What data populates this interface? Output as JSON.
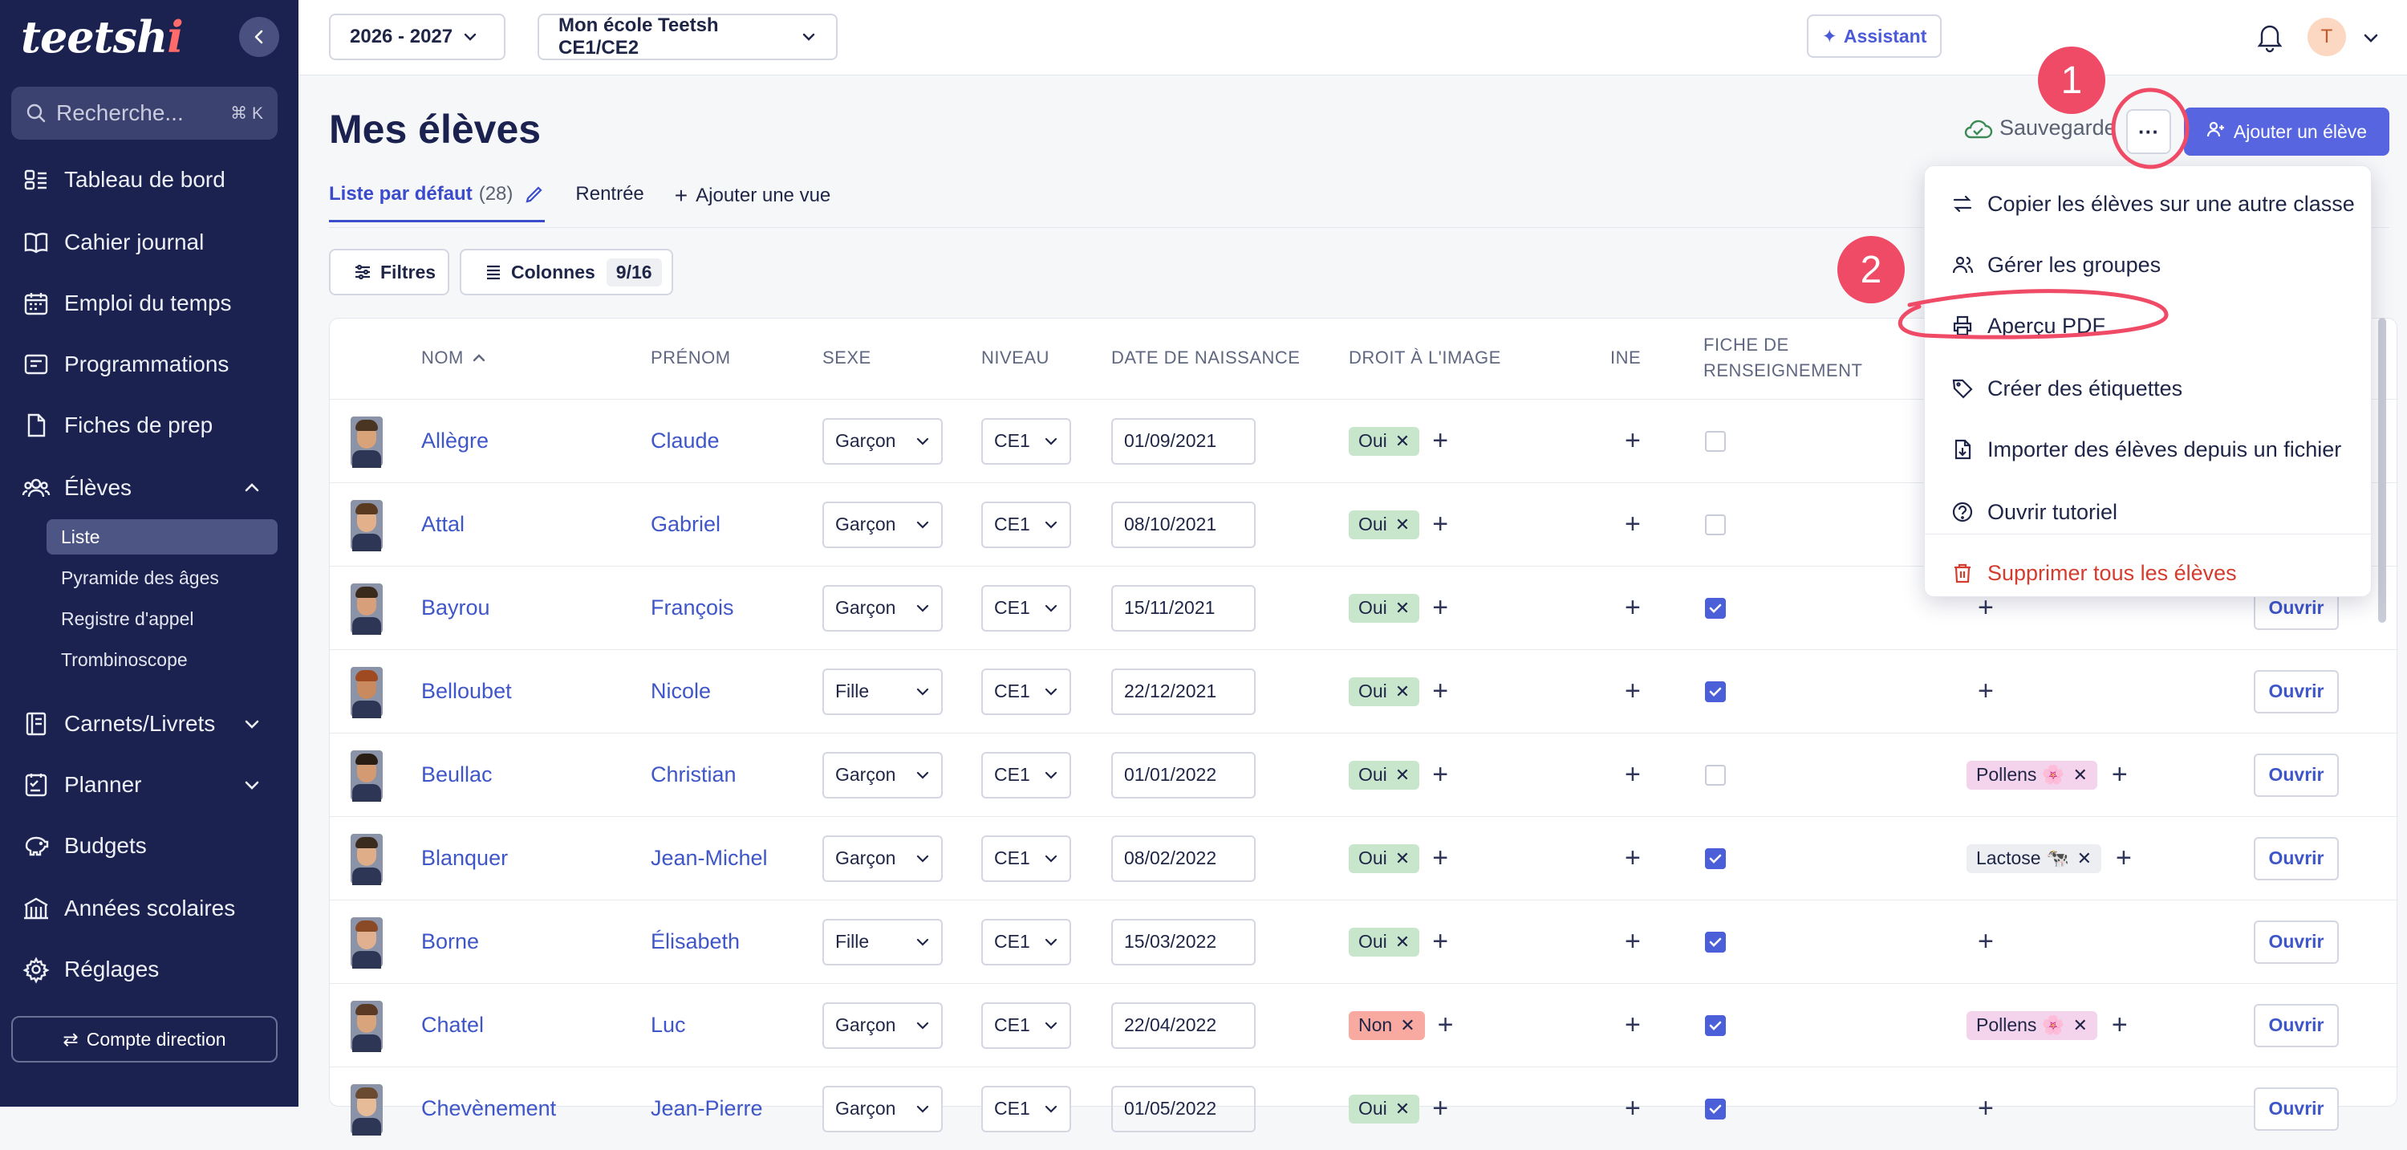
{
  "app": {
    "logo_main": "teetsh",
    "logo_accent": "i",
    "search_placeholder": "Recherche...",
    "search_shortcut": "⌘ K"
  },
  "sidebar": {
    "items": [
      {
        "label": "Tableau de bord",
        "icon": "dashboard-icon"
      },
      {
        "label": "Cahier journal",
        "icon": "book-icon"
      },
      {
        "label": "Emploi du temps",
        "icon": "calendar-icon"
      },
      {
        "label": "Programmations",
        "icon": "programmation-icon"
      },
      {
        "label": "Fiches de prep",
        "icon": "document-icon"
      },
      {
        "label": "Élèves",
        "icon": "users-icon"
      }
    ],
    "sub_items": [
      "Liste",
      "Pyramide des âges",
      "Registre d'appel",
      "Trombinoscope"
    ],
    "items_bottom": [
      {
        "label": "Carnets/Livrets",
        "icon": "notebook-icon"
      },
      {
        "label": "Planner",
        "icon": "planner-icon"
      },
      {
        "label": "Budgets",
        "icon": "piggy-bank-icon"
      },
      {
        "label": "Années scolaires",
        "icon": "school-icon"
      },
      {
        "label": "Réglages",
        "icon": "gear-icon"
      }
    ],
    "compte_label": "Compte direction"
  },
  "topbar": {
    "year": "2026 - 2027",
    "school": "Mon école Teetsh CE1/CE2",
    "assistant": "Assistant",
    "avatar_letter": "T"
  },
  "page": {
    "title": "Mes élèves",
    "save_status": "Sauvegarde",
    "dots": "···",
    "add_button": "Ajouter un élève",
    "tabs": [
      {
        "label": "Liste par défaut",
        "count": "(28)"
      },
      {
        "label": "Rentrée"
      },
      {
        "label": "Ajouter une vue"
      }
    ],
    "filters": "Filtres",
    "columns": "Colonnes",
    "columns_count": "9/16"
  },
  "table": {
    "headers": [
      "Nom",
      "Prénom",
      "Sexe",
      "Niveau",
      "Date de naissance",
      "Droit à l'image",
      "INE",
      "Fiche de",
      "renseignement"
    ],
    "rows": [
      {
        "nom": "Allègre",
        "prenom": "Claude",
        "sexe": "Garçon",
        "niveau": "CE1",
        "date": "01/09/2021",
        "droit": "Oui",
        "fiche": false,
        "allergy": "",
        "open": ""
      },
      {
        "nom": "Attal",
        "prenom": "Gabriel",
        "sexe": "Garçon",
        "niveau": "CE1",
        "date": "08/10/2021",
        "droit": "Oui",
        "fiche": false,
        "allergy": "",
        "open": ""
      },
      {
        "nom": "Bayrou",
        "prenom": "François",
        "sexe": "Garçon",
        "niveau": "CE1",
        "date": "15/11/2021",
        "droit": "Oui",
        "fiche": true,
        "allergy": "",
        "open": "Ouvrir"
      },
      {
        "nom": "Belloubet",
        "prenom": "Nicole",
        "sexe": "Fille",
        "niveau": "CE1",
        "date": "22/12/2021",
        "droit": "Oui",
        "fiche": true,
        "allergy": "",
        "open": "Ouvrir"
      },
      {
        "nom": "Beullac",
        "prenom": "Christian",
        "sexe": "Garçon",
        "niveau": "CE1",
        "date": "01/01/2022",
        "droit": "Oui",
        "fiche": false,
        "allergy": "Pollens 🌸",
        "allergy_color": "pink",
        "open": "Ouvrir"
      },
      {
        "nom": "Blanquer",
        "prenom": "Jean-Michel",
        "sexe": "Garçon",
        "niveau": "CE1",
        "date": "08/02/2022",
        "droit": "Oui",
        "fiche": true,
        "allergy": "Lactose 🐄",
        "allergy_color": "gray",
        "open": "Ouvrir"
      },
      {
        "nom": "Borne",
        "prenom": "Élisabeth",
        "sexe": "Fille",
        "niveau": "CE1",
        "date": "15/03/2022",
        "droit": "Oui",
        "fiche": true,
        "allergy": "",
        "open": "Ouvrir"
      },
      {
        "nom": "Chatel",
        "prenom": "Luc",
        "sexe": "Garçon",
        "niveau": "CE1",
        "date": "22/04/2022",
        "droit": "Non",
        "fiche": true,
        "allergy": "Pollens 🌸",
        "allergy_color": "pink",
        "open": "Ouvrir"
      },
      {
        "nom": "Chevènement",
        "prenom": "Jean-Pierre",
        "sexe": "Garçon",
        "niveau": "CE1",
        "date": "01/05/2022",
        "droit": "Oui",
        "fiche": true,
        "allergy": "",
        "open": "Ouvrir"
      }
    ]
  },
  "menu": {
    "items": [
      {
        "label": "Copier les élèves sur une autre classe",
        "icon": "swap-arrows-icon"
      },
      {
        "label": "Gérer les groupes",
        "icon": "group-icon"
      },
      {
        "label": "Aperçu PDF",
        "icon": "printer-icon"
      },
      {
        "label": "Créer des étiquettes",
        "icon": "tag-icon"
      },
      {
        "label": "Importer des élèves depuis un fichier",
        "icon": "file-import-icon"
      },
      {
        "label": "Ouvrir tutoriel",
        "icon": "help-circle-icon"
      },
      {
        "label": "Supprimer tous les élèves",
        "icon": "trash-icon"
      }
    ]
  },
  "annotations": {
    "step1": "1",
    "step2": "2"
  },
  "colors": {
    "sidebar": "#1b2250",
    "accent": "#5766e0",
    "danger": "#d43c2e",
    "annotation": "#ef4a66"
  }
}
